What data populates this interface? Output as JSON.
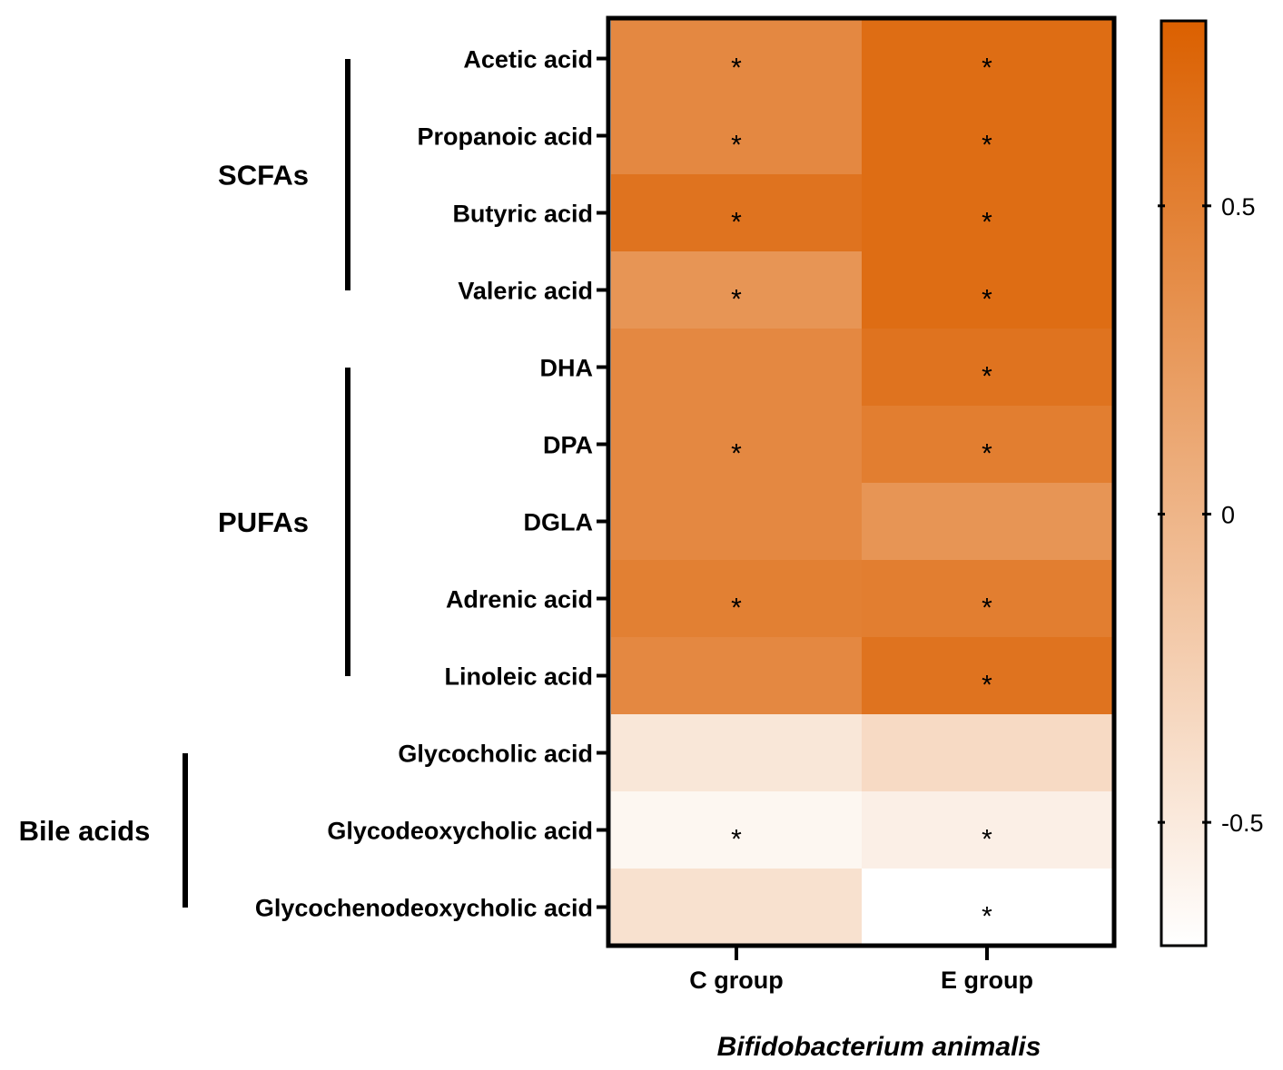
{
  "chart_data": {
    "type": "heatmap",
    "title": "",
    "xlabel": "Bifidobacterium animalis",
    "ylabel": "",
    "columns": [
      "C group",
      "E group"
    ],
    "rows": [
      "Acetic acid",
      "Propanoic acid",
      "Butyric acid",
      "Valeric acid",
      "DHA",
      "DPA",
      "DGLA",
      "Adrenic acid",
      "Linoleic acid",
      "Glycocholic acid",
      "Glycodeoxycholic acid",
      "Glycochenodeoxycholic acid"
    ],
    "groups": [
      {
        "name": "SCFAs",
        "rows": [
          "Acetic acid",
          "Propanoic acid",
          "Butyric acid",
          "Valeric acid"
        ]
      },
      {
        "name": "PUFAs",
        "rows": [
          "DHA",
          "DPA",
          "DGLA",
          "Adrenic acid",
          "Linoleic acid"
        ]
      },
      {
        "name": "Bile acids",
        "rows": [
          "Glycocholic acid",
          "Glycodeoxycholic acid",
          "Glycochenodeoxycholic acid"
        ]
      }
    ],
    "values": [
      [
        0.42,
        0.68
      ],
      [
        0.42,
        0.68
      ],
      [
        0.62,
        0.68
      ],
      [
        0.3,
        0.68
      ],
      [
        0.42,
        0.62
      ],
      [
        0.42,
        0.52
      ],
      [
        0.42,
        0.3
      ],
      [
        0.5,
        0.52
      ],
      [
        0.42,
        0.62
      ],
      [
        -0.47,
        -0.35
      ],
      [
        -0.62,
        -0.55
      ],
      [
        -0.42,
        -0.7
      ]
    ],
    "significant": [
      [
        "*",
        "*"
      ],
      [
        "*",
        "*"
      ],
      [
        "*",
        "*"
      ],
      [
        "*",
        "*"
      ],
      [
        "",
        "*"
      ],
      [
        "*",
        "*"
      ],
      [
        "",
        ""
      ],
      [
        "*",
        "*"
      ],
      [
        "",
        "*"
      ],
      [
        "",
        ""
      ],
      [
        "*",
        "*"
      ],
      [
        "",
        "*"
      ]
    ],
    "colorbar": {
      "range": [
        -0.7,
        0.8
      ],
      "ticks": [
        0.5,
        0,
        -0.5
      ],
      "tick_labels": [
        "0.5",
        "0",
        "-0.5"
      ],
      "low_color": "#ffffff",
      "high_color": "#db6000"
    }
  }
}
